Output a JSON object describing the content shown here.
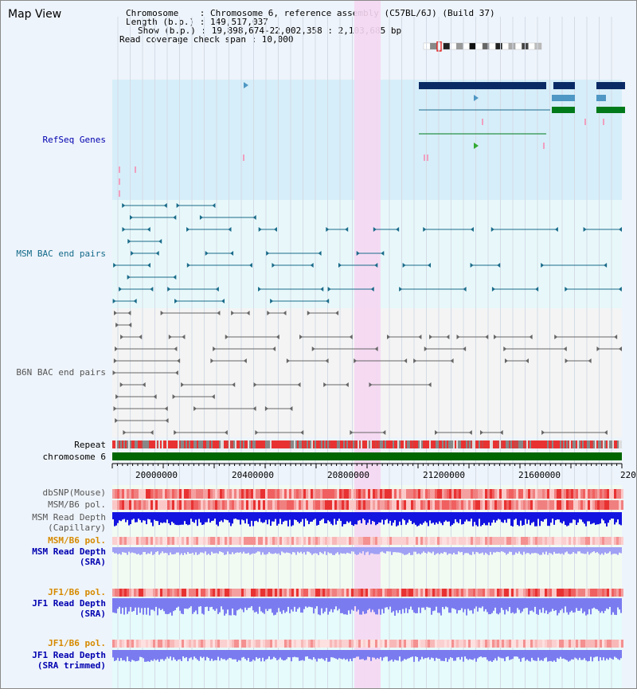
{
  "panel": {
    "title": "Map View"
  },
  "info": {
    "chromosome": "Chromosome    : Chromosome 6, reference assembly (C57BL/6J) (Build 37)",
    "length": "Length (b.p.) : 149,517,037",
    "show": "Show (b.p.) : 19,898,674-22,002,358 : 2,103,685 bp",
    "coverage": "Read coverage check span : 10,000"
  },
  "tracks": {
    "refseq": "RefSeq Genes",
    "msm_bac": "MSM BAC end pairs",
    "b6n_bac": "B6N BAC end pairs",
    "repeat": "Repeat",
    "chromosome": "chromosome 6",
    "dbsnp": "dbSNP(Mouse)",
    "msm_b6_pol": "MSM/B6 pol.",
    "msm_depth_1": "MSM Read Depth",
    "msm_depth_1b": "(Capillary)",
    "msm_b6_pol_2": "MSM/B6 pol.",
    "msm_depth_2": "MSM Read Depth",
    "msm_depth_2b": "(SRA)",
    "jf1_pol": "JF1/B6 pol.",
    "jf1_depth": "JF1 Read Depth",
    "jf1_depth_b": "(SRA)",
    "jf1_pol_2": "JF1/B6 pol.",
    "jf1_depth_2": "JF1 Read Depth",
    "jf1_depth_2b": "(SRA trimmed)"
  },
  "axis": {
    "ticks": [
      "20000000",
      "20400000",
      "20800000",
      "21200000",
      "21600000",
      "220"
    ]
  },
  "colors": {
    "refseq_bg": "#d6eef9",
    "msm_bg": "#e8f8fa",
    "b6n_bg": "#f4f4f4",
    "highlight": "#f5d7f2",
    "chromosome": "#006600",
    "gene_dark": "#0a2a66",
    "gene_mid": "#4f97c4",
    "gene_green": "#007a1a",
    "msm_pair": "#1a6b8a",
    "b6n_pair": "#666666",
    "pol_red": "#e83232",
    "depth_dark_blue": "#1414e0",
    "depth_light_blue": "#7b7bf0"
  }
}
